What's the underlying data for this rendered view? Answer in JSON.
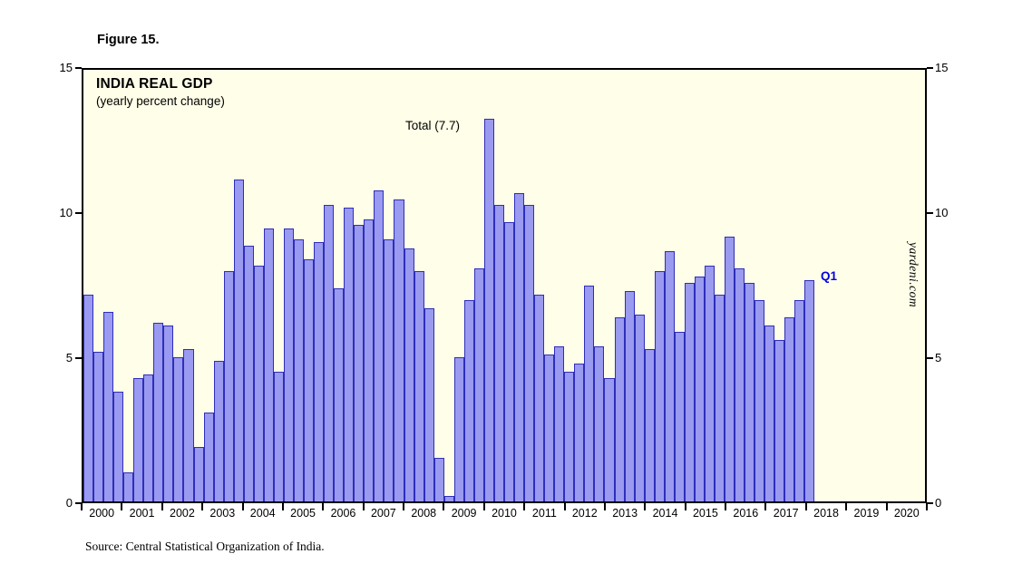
{
  "figure_label": "Figure 15.",
  "title": "INDIA REAL GDP",
  "subtitle": "(yearly percent change)",
  "annotations": {
    "total": "Total (7.7)",
    "q1": "Q1"
  },
  "watermark": "yardeni.com",
  "source": "Source: Central Statistical Organization of India.",
  "colors": {
    "bar_fill": "#9a9af0",
    "bar_border": "#2e2ebc",
    "plot_bg": "#fffee8",
    "q1_label": "#0000e0",
    "axis": "#000000"
  },
  "chart_data": {
    "type": "bar",
    "title": "INDIA REAL GDP",
    "subtitle": "(yearly percent change)",
    "xlabel": "",
    "ylabel": "",
    "bar_period": "quarterly",
    "x_start_year": 2000,
    "x_end_year": 2021,
    "ylim": [
      0,
      15
    ],
    "yticks": [
      0,
      5,
      10,
      15
    ],
    "grid": "off",
    "legend": "none",
    "year_labels": [
      "2000",
      "2001",
      "2002",
      "2003",
      "2004",
      "2005",
      "2006",
      "2007",
      "2008",
      "2009",
      "2010",
      "2011",
      "2012",
      "2013",
      "2014",
      "2015",
      "2016",
      "2017",
      "2018",
      "2019",
      "2020"
    ],
    "values": [
      7.2,
      5.2,
      6.6,
      3.8,
      1.0,
      4.3,
      4.4,
      6.2,
      6.1,
      5.0,
      5.3,
      1.9,
      3.1,
      4.9,
      8.0,
      11.2,
      8.9,
      8.2,
      9.5,
      4.5,
      9.5,
      9.1,
      8.4,
      9.0,
      10.3,
      7.4,
      10.2,
      9.6,
      9.8,
      10.8,
      9.1,
      10.5,
      8.8,
      8.0,
      6.7,
      1.5,
      0.2,
      5.0,
      7.0,
      8.1,
      13.3,
      10.3,
      9.7,
      10.7,
      10.3,
      7.2,
      5.1,
      5.4,
      4.5,
      4.8,
      7.5,
      5.4,
      4.3,
      6.4,
      7.3,
      6.5,
      5.3,
      8.0,
      8.7,
      5.9,
      7.6,
      7.8,
      8.2,
      7.2,
      9.2,
      8.1,
      7.6,
      7.0,
      6.1,
      5.6,
      6.4,
      7.0,
      7.7
    ],
    "last_bar_label": "Q1",
    "total_annotation_value": 7.7
  }
}
